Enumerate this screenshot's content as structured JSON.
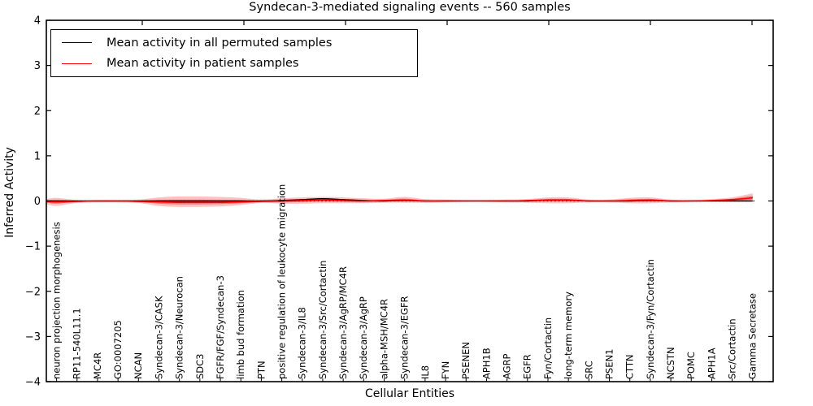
{
  "figure": {
    "background": "#ffffff"
  },
  "legend": {
    "entries": [
      {
        "label": "Mean activity in all permuted samples",
        "color": "#000000"
      },
      {
        "label": "Mean activity in patient samples",
        "color": "#ff0000"
      }
    ]
  },
  "chart_data": {
    "type": "line",
    "title": "Syndecan-3-mediated signaling events -- 560 samples",
    "xlabel": "Cellular Entities",
    "ylabel": "Inferred Activity",
    "ylim": [
      -4,
      4
    ],
    "yticks": [
      "4",
      "3",
      "2",
      "1",
      "0",
      "−1",
      "−2",
      "−3",
      "−4"
    ],
    "ytick_values": [
      4,
      3,
      2,
      1,
      0,
      -1,
      -2,
      -3,
      -4
    ],
    "grid": false,
    "legend_position": "upper left",
    "zero_line": {
      "style": "dotted",
      "color": "#000000",
      "y": 0
    },
    "band_color": "#ff0000",
    "categories": [
      "neuron projection morphogenesis",
      "RP11-540L11.1",
      "MC4R",
      "GO:0007205",
      "NCAN",
      "Syndecan-3/CASK",
      "Syndecan-3/Neurocan",
      "SDC3",
      "FGFR/FGF/Syndecan-3",
      "limb bud formation",
      "PTN",
      "positive regulation of leukocyte migration",
      "Syndecan-3/IL8",
      "Syndecan-3/Src/Cortactin",
      "Syndecan-3/AgRP/MC4R",
      "Syndecan-3/AgRP",
      "alpha-MSH/MC4R",
      "Syndecan-3/EGFR",
      "IL8",
      "FYN",
      "PSENEN",
      "APH1B",
      "AGRP",
      "EGFR",
      "Fyn/Cortactin",
      "long-term memory",
      "SRC",
      "PSEN1",
      "CTTN",
      "Syndecan-3/Fyn/Cortactin",
      "NCSTN",
      "POMC",
      "APH1A",
      "Src/Cortactin",
      "Gamma Secretase"
    ],
    "series": [
      {
        "name": "Mean activity in all permuted samples",
        "color": "#000000",
        "values": [
          0,
          0,
          0,
          0,
          0,
          0,
          0,
          0,
          0,
          0,
          0,
          0.01,
          0.03,
          0.05,
          0.03,
          0.01,
          0,
          0.01,
          0,
          0,
          0,
          0,
          0,
          0,
          0.02,
          0.02,
          0,
          0,
          0,
          0.01,
          0,
          0,
          0,
          0,
          0
        ]
      },
      {
        "name": "Mean activity in patient samples",
        "color": "#ff0000",
        "values": [
          -0.02,
          -0.01,
          0,
          0,
          -0.01,
          -0.02,
          -0.03,
          -0.03,
          -0.03,
          -0.02,
          -0.01,
          0,
          0.01,
          0.02,
          0.01,
          0,
          0.01,
          0.02,
          0,
          0,
          0,
          0,
          0,
          0.01,
          0.02,
          0.02,
          0,
          0,
          0.01,
          0.02,
          0,
          0,
          0.01,
          0.03,
          0.07
        ]
      }
    ],
    "band": {
      "upper": [
        0.07,
        0.02,
        0.02,
        0.02,
        0.03,
        0.08,
        0.1,
        0.1,
        0.09,
        0.07,
        0.03,
        0.06,
        0.08,
        0.09,
        0.08,
        0.06,
        0.05,
        0.09,
        0.04,
        0.03,
        0.02,
        0.02,
        0.03,
        0.04,
        0.08,
        0.08,
        0.03,
        0.03,
        0.07,
        0.08,
        0.03,
        0.02,
        0.04,
        0.08,
        0.17
      ],
      "lower": [
        -0.11,
        -0.04,
        -0.03,
        -0.03,
        -0.04,
        -0.11,
        -0.13,
        -0.13,
        -0.12,
        -0.09,
        -0.04,
        -0.06,
        -0.06,
        -0.05,
        -0.05,
        -0.05,
        -0.04,
        -0.04,
        -0.04,
        -0.03,
        -0.02,
        -0.02,
        -0.03,
        -0.04,
        -0.05,
        -0.05,
        -0.03,
        -0.03,
        -0.05,
        -0.05,
        -0.03,
        -0.02,
        -0.02,
        -0.02,
        -0.01
      ]
    }
  }
}
